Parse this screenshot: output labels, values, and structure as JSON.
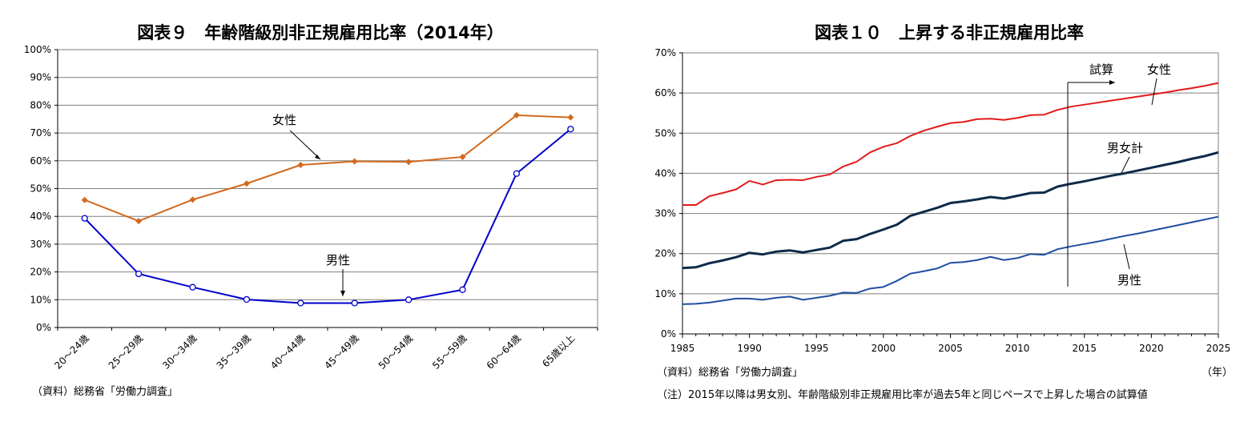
{
  "chart_data": [
    {
      "type": "line",
      "title": "図表９　年齢階級別非正規雇用比率（2014年）",
      "categories": [
        "20～24歳",
        "25～29歳",
        "30～34歳",
        "35～39歳",
        "40～44歳",
        "45～49歳",
        "50～54歳",
        "55～59歳",
        "60～64歳",
        "65歳以上"
      ],
      "ylim": [
        0,
        100
      ],
      "yticks": [
        "0%",
        "10%",
        "20%",
        "30%",
        "40%",
        "50%",
        "60%",
        "70%",
        "80%",
        "90%",
        "100%"
      ],
      "grid": true,
      "series": [
        {
          "name": "女性",
          "color": "#d2691e",
          "marker": "diamond",
          "values": [
            45.9,
            38.3,
            46.0,
            51.8,
            58.5,
            59.8,
            59.6,
            61.4,
            76.4,
            75.6
          ]
        },
        {
          "name": "男性",
          "color": "#0000cd",
          "marker": "circle",
          "values": [
            39.3,
            19.3,
            14.5,
            10.1,
            8.8,
            8.8,
            10.0,
            13.6,
            55.4,
            71.4
          ]
        }
      ],
      "source": "（資料）総務省「労働力調査」"
    },
    {
      "type": "line",
      "title": "図表１０　上昇する非正規雇用比率",
      "x": [
        1985,
        1986,
        1987,
        1988,
        1989,
        1990,
        1991,
        1992,
        1993,
        1994,
        1995,
        1996,
        1997,
        1998,
        1999,
        2000,
        2001,
        2002,
        2003,
        2004,
        2005,
        2006,
        2007,
        2008,
        2009,
        2010,
        2011,
        2012,
        2013,
        2014,
        2015,
        2016,
        2017,
        2018,
        2019,
        2020,
        2021,
        2022,
        2023,
        2024,
        2025
      ],
      "xticks": [
        "1985",
        "1990",
        "1995",
        "2000",
        "2005",
        "2010",
        "2015",
        "2020",
        "2025"
      ],
      "xlim": [
        1985,
        2025
      ],
      "ylim": [
        0,
        70
      ],
      "yticks": [
        "0%",
        "10%",
        "20%",
        "30%",
        "40%",
        "50%",
        "60%",
        "70%"
      ],
      "xunit": "（年）",
      "grid": true,
      "series": [
        {
          "name": "女性",
          "color": "#e31a1c",
          "values": [
            32.1,
            32.1,
            34.3,
            35.1,
            36.0,
            38.1,
            37.2,
            38.3,
            38.4,
            38.3,
            39.1,
            39.7,
            41.7,
            42.9,
            45.2,
            46.6,
            47.5,
            49.3,
            50.6,
            51.6,
            52.5,
            52.8,
            53.5,
            53.6,
            53.3,
            53.8,
            54.5,
            54.6,
            55.8,
            56.6,
            57.1,
            57.6,
            58.1,
            58.6,
            59.1,
            59.6,
            60.1,
            60.7,
            61.2,
            61.8,
            62.5
          ]
        },
        {
          "name": "男女計",
          "color": "#0e2a4a",
          "values": [
            16.4,
            16.6,
            17.6,
            18.3,
            19.1,
            20.2,
            19.8,
            20.5,
            20.8,
            20.3,
            20.9,
            21.5,
            23.2,
            23.6,
            24.9,
            26.0,
            27.2,
            29.4,
            30.4,
            31.4,
            32.6,
            33.0,
            33.5,
            34.1,
            33.7,
            34.4,
            35.1,
            35.2,
            36.7,
            37.4,
            38.0,
            38.7,
            39.4,
            40.0,
            40.7,
            41.4,
            42.1,
            42.8,
            43.6,
            44.3,
            45.2
          ]
        },
        {
          "name": "男性",
          "color": "#1f4ea1",
          "values": [
            7.4,
            7.5,
            7.8,
            8.3,
            8.8,
            8.8,
            8.5,
            9.0,
            9.3,
            8.5,
            9.0,
            9.5,
            10.3,
            10.2,
            11.3,
            11.7,
            13.2,
            15.0,
            15.6,
            16.3,
            17.7,
            17.9,
            18.4,
            19.2,
            18.4,
            18.9,
            19.9,
            19.7,
            21.1,
            21.8,
            22.4,
            23.0,
            23.7,
            24.4,
            25.0,
            25.7,
            26.4,
            27.1,
            27.8,
            28.5,
            29.2
          ]
        }
      ],
      "annotations": [
        "試算"
      ],
      "source": "（資料）総務省「労働力調査」",
      "note": "（注）2015年以降は男女別、年齢階級別非正規雇用比率が過去5年と同じペースで上昇した場合の試算値"
    }
  ]
}
